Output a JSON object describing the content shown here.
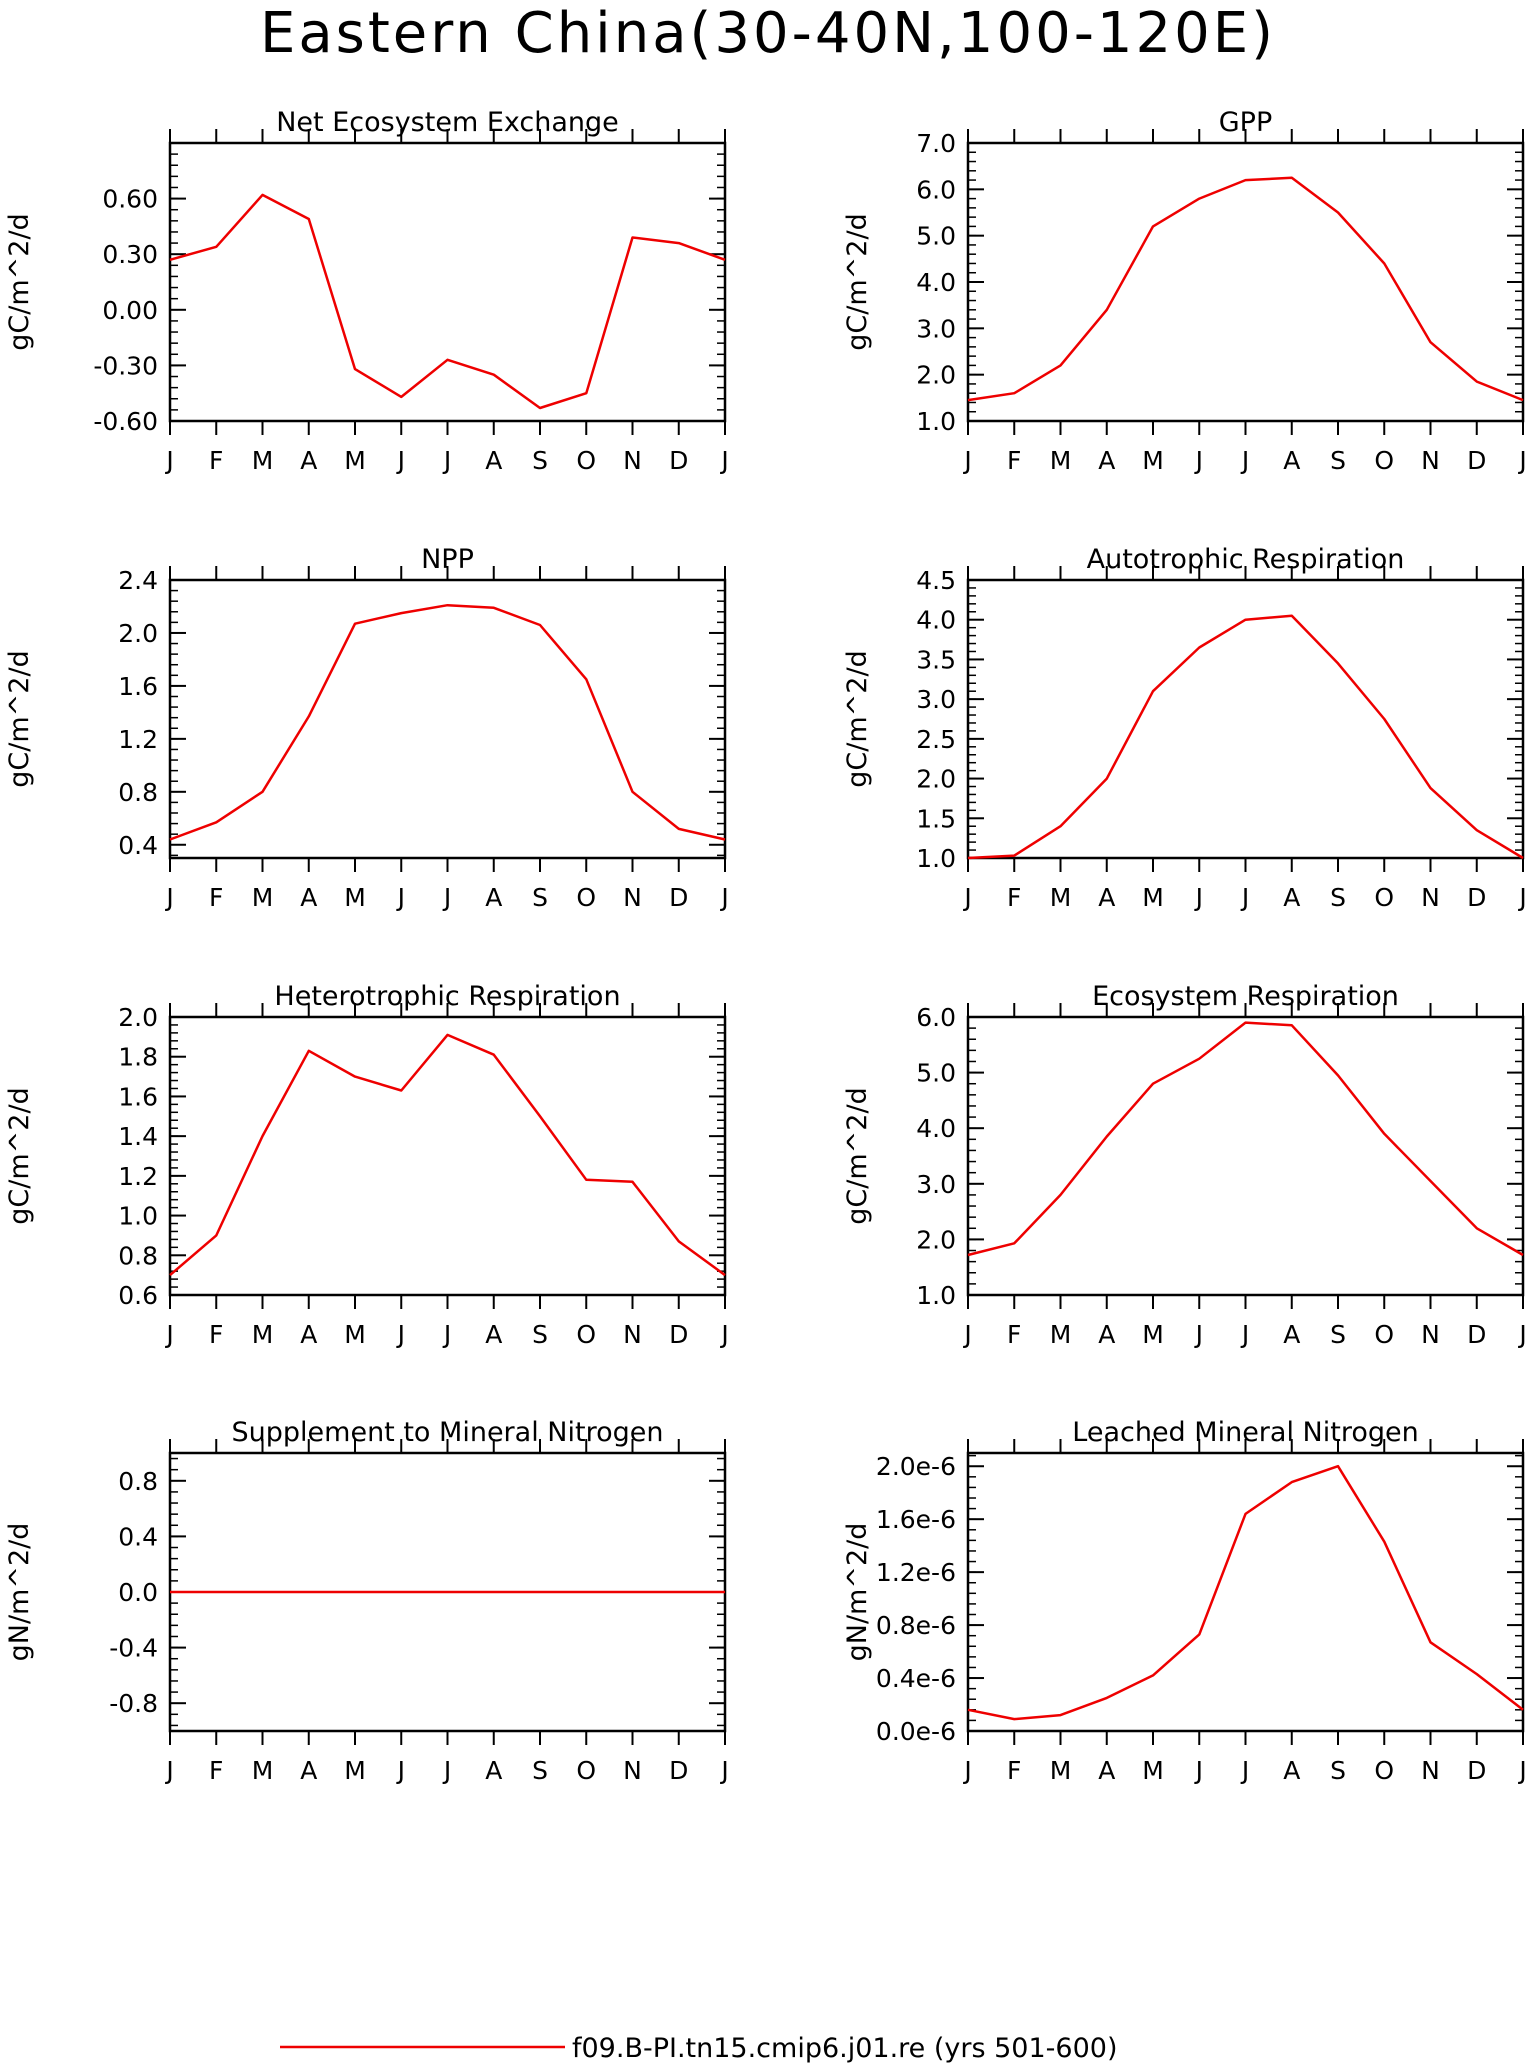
{
  "title": "Eastern China(30-40N,100-120E)",
  "legend": {
    "label": "f09.B-PI.tn15.cmip6.j01.re (yrs 501-600)",
    "color": "#ee0000"
  },
  "months": [
    "J",
    "F",
    "M",
    "A",
    "M",
    "J",
    "J",
    "A",
    "S",
    "O",
    "N",
    "D",
    "J"
  ],
  "line_color": "#ee0000",
  "chart_data": [
    {
      "type": "line",
      "title": "Net Ecosystem Exchange",
      "ylabel": "gC/m^2/d",
      "ylim": [
        -0.6,
        0.9
      ],
      "yticks": [
        -0.6,
        -0.3,
        0.0,
        0.3,
        0.6
      ],
      "ytick_labels": [
        "-0.60",
        "-0.30",
        "0.00",
        "0.30",
        "0.60"
      ],
      "x": [
        "J",
        "F",
        "M",
        "A",
        "M",
        "J",
        "J",
        "A",
        "S",
        "O",
        "N",
        "D",
        "J"
      ],
      "values": [
        0.27,
        0.34,
        0.62,
        0.49,
        -0.32,
        -0.47,
        -0.27,
        -0.35,
        -0.53,
        -0.45,
        0.39,
        0.36,
        0.27
      ]
    },
    {
      "type": "line",
      "title": "GPP",
      "ylabel": "gC/m^2/d",
      "ylim": [
        1.0,
        7.0
      ],
      "yticks": [
        1,
        2,
        3,
        4,
        5,
        6,
        7
      ],
      "ytick_labels": [
        "1.0",
        "2.0",
        "3.0",
        "4.0",
        "5.0",
        "6.0",
        "7.0"
      ],
      "x": [
        "J",
        "F",
        "M",
        "A",
        "M",
        "J",
        "J",
        "A",
        "S",
        "O",
        "N",
        "D",
        "J"
      ],
      "values": [
        1.45,
        1.6,
        2.2,
        3.4,
        5.2,
        5.8,
        6.2,
        6.25,
        5.5,
        4.4,
        2.7,
        1.85,
        1.45
      ]
    },
    {
      "type": "line",
      "title": "NPP",
      "ylabel": "gC/m^2/d",
      "ylim": [
        0.3,
        2.4
      ],
      "yticks": [
        0.4,
        0.8,
        1.2,
        1.6,
        2.0,
        2.4
      ],
      "ytick_labels": [
        "0.4",
        "0.8",
        "1.2",
        "1.6",
        "2.0",
        "2.4"
      ],
      "x": [
        "J",
        "F",
        "M",
        "A",
        "M",
        "J",
        "J",
        "A",
        "S",
        "O",
        "N",
        "D",
        "J"
      ],
      "values": [
        0.44,
        0.57,
        0.8,
        1.37,
        2.07,
        2.15,
        2.21,
        2.19,
        2.06,
        1.65,
        0.8,
        0.52,
        0.44
      ]
    },
    {
      "type": "line",
      "title": "Autotrophic Respiration",
      "ylabel": "gC/m^2/d",
      "ylim": [
        1.0,
        4.5
      ],
      "yticks": [
        1.0,
        1.5,
        2.0,
        2.5,
        3.0,
        3.5,
        4.0,
        4.5
      ],
      "ytick_labels": [
        "1.0",
        "1.5",
        "2.0",
        "2.5",
        "3.0",
        "3.5",
        "4.0",
        "4.5"
      ],
      "x": [
        "J",
        "F",
        "M",
        "A",
        "M",
        "J",
        "J",
        "A",
        "S",
        "O",
        "N",
        "D",
        "J"
      ],
      "values": [
        1.0,
        1.03,
        1.4,
        2.0,
        3.1,
        3.65,
        4.0,
        4.05,
        3.45,
        2.75,
        1.88,
        1.35,
        1.0
      ]
    },
    {
      "type": "line",
      "title": "Heterotrophic Respiration",
      "ylabel": "gC/m^2/d",
      "ylim": [
        0.6,
        2.0
      ],
      "yticks": [
        0.6,
        0.8,
        1.0,
        1.2,
        1.4,
        1.6,
        1.8,
        2.0
      ],
      "ytick_labels": [
        "0.6",
        "0.8",
        "1.0",
        "1.2",
        "1.4",
        "1.6",
        "1.8",
        "2.0"
      ],
      "x": [
        "J",
        "F",
        "M",
        "A",
        "M",
        "J",
        "J",
        "A",
        "S",
        "O",
        "N",
        "D",
        "J"
      ],
      "values": [
        0.7,
        0.9,
        1.4,
        1.83,
        1.7,
        1.63,
        1.91,
        1.81,
        1.5,
        1.18,
        1.17,
        0.87,
        0.7
      ]
    },
    {
      "type": "line",
      "title": "Ecosystem Respiration",
      "ylabel": "gC/m^2/d",
      "ylim": [
        1.0,
        6.0
      ],
      "yticks": [
        1,
        2,
        3,
        4,
        5,
        6
      ],
      "ytick_labels": [
        "1.0",
        "2.0",
        "3.0",
        "4.0",
        "5.0",
        "6.0"
      ],
      "x": [
        "J",
        "F",
        "M",
        "A",
        "M",
        "J",
        "J",
        "A",
        "S",
        "O",
        "N",
        "D",
        "J"
      ],
      "values": [
        1.72,
        1.93,
        2.8,
        3.85,
        4.8,
        5.25,
        5.9,
        5.85,
        4.95,
        3.9,
        3.05,
        2.2,
        1.72
      ]
    },
    {
      "type": "line",
      "title": "Supplement to Mineral Nitrogen",
      "ylabel": "gN/m^2/d",
      "ylim": [
        -1.0,
        1.0
      ],
      "yticks": [
        -0.8,
        -0.4,
        0.0,
        0.4,
        0.8
      ],
      "ytick_labels": [
        "-0.8",
        "-0.4",
        "0.0",
        "0.4",
        "0.8"
      ],
      "x": [
        "J",
        "F",
        "M",
        "A",
        "M",
        "J",
        "J",
        "A",
        "S",
        "O",
        "N",
        "D",
        "J"
      ],
      "values": [
        0,
        0,
        0,
        0,
        0,
        0,
        0,
        0,
        0,
        0,
        0,
        0,
        0
      ]
    },
    {
      "type": "line",
      "title": "Leached Mineral Nitrogen",
      "ylabel": "gN/m^2/d",
      "ylim": [
        0.0,
        2.1e-06
      ],
      "yticks": [
        0.0,
        4e-07,
        8e-07,
        1.2e-06,
        1.6e-06,
        2e-06
      ],
      "ytick_labels": [
        "0.0e-6",
        "0.4e-6",
        "0.8e-6",
        "1.2e-6",
        "1.6e-6",
        "2.0e-6"
      ],
      "x": [
        "J",
        "F",
        "M",
        "A",
        "M",
        "J",
        "J",
        "A",
        "S",
        "O",
        "N",
        "D",
        "J"
      ],
      "values": [
        1.6e-07,
        9e-08,
        1.2e-07,
        2.5e-07,
        4.2e-07,
        7.3e-07,
        1.64e-06,
        1.88e-06,
        2e-06,
        1.43e-06,
        6.7e-07,
        4.3e-07,
        1.6e-07
      ]
    }
  ]
}
